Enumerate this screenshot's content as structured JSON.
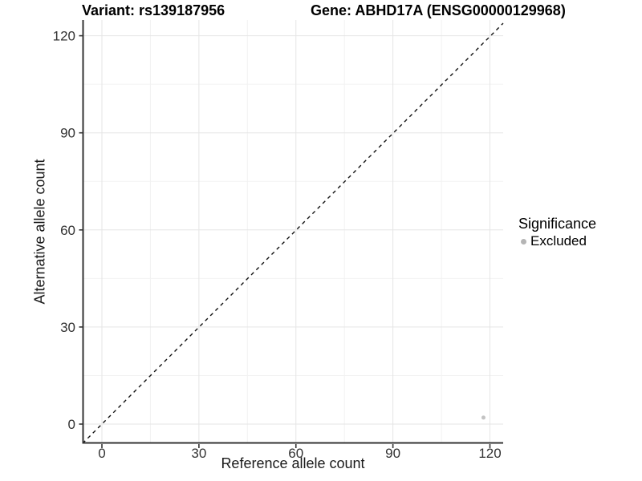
{
  "chart_data": {
    "type": "scatter",
    "titles": [
      "Variant: rs139187956",
      "Gene: ABHD17A (ENSG00000129968)"
    ],
    "xlabel": "Reference allele count",
    "ylabel": "Alternative allele count",
    "x_ticks": [
      0,
      30,
      60,
      90,
      120
    ],
    "y_ticks": [
      0,
      30,
      60,
      90,
      120
    ],
    "x_minor_ticks": [
      15,
      45,
      75,
      105
    ],
    "y_minor_ticks": [
      15,
      45,
      75,
      105
    ],
    "xlim": [
      -6,
      126
    ],
    "ylim": [
      -6,
      126
    ],
    "grid": "major+minor",
    "identity_line": {
      "style": "dashed",
      "equation": "y = x"
    },
    "points": [
      {
        "x": 118,
        "y": 2,
        "series": "Excluded"
      }
    ],
    "legend": {
      "title": "Significance",
      "position": "right",
      "entries": [
        {
          "label": "Excluded",
          "color": "#b5b5b5",
          "marker": "circle"
        }
      ]
    },
    "colors": {
      "background": "#ffffff",
      "major_grid": "#e5e5e5",
      "minor_grid": "#f2f2f2",
      "axis": "#333333",
      "tick_text": "#333333",
      "point": "#c3c3c3",
      "identity": "#111111"
    }
  }
}
